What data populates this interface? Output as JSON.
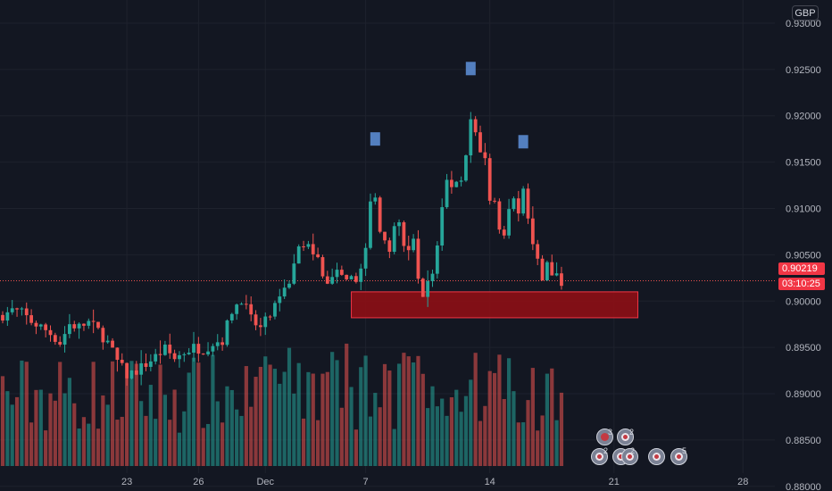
{
  "instrument": {
    "currency": "GBP",
    "current_price": "0.90219",
    "countdown": "03:10:25"
  },
  "colors": {
    "background": "#131722",
    "up": "#26a69a",
    "down": "#ef5350",
    "zone_fill": "#8b0f16",
    "zone_border": "#f23645",
    "marker": "#5b8bd0",
    "axis_text": "#b2b5be",
    "grid": "#1e222d"
  },
  "chart_data": {
    "type": "candlestick",
    "y_axis": {
      "range": [
        0.8795,
        0.9325
      ],
      "ticks": [
        "0.93000",
        "0.92500",
        "0.92000",
        "0.91500",
        "0.91000",
        "0.90500",
        "0.90000",
        "0.89500",
        "0.89000",
        "0.88500",
        "0.88000"
      ]
    },
    "x_axis": {
      "ticks": [
        {
          "label": "23",
          "bar": 26
        },
        {
          "label": "26",
          "bar": 41
        },
        {
          "label": "Dec",
          "bar": 55
        },
        {
          "label": "7",
          "bar": 76
        },
        {
          "label": "14",
          "bar": 102
        },
        {
          "label": "21",
          "bar": 128
        },
        {
          "label": "28",
          "bar": 155
        }
      ]
    },
    "support_zone": {
      "from_bar": 73,
      "to_bar": 133,
      "top": 0.901,
      "bottom": 0.8982
    },
    "peak_markers": [
      {
        "bar": 78,
        "price": 0.9175
      },
      {
        "bar": 98,
        "price": 0.9251
      },
      {
        "bar": 109,
        "price": 0.9172
      }
    ],
    "path_points": [
      [
        0,
        0.8985
      ],
      [
        2,
        0.899
      ],
      [
        4,
        0.8987
      ],
      [
        6,
        0.8978
      ],
      [
        8,
        0.8972
      ],
      [
        10,
        0.8965
      ],
      [
        12,
        0.8955
      ],
      [
        14,
        0.8975
      ],
      [
        16,
        0.8972
      ],
      [
        18,
        0.8977
      ],
      [
        20,
        0.8968
      ],
      [
        22,
        0.8955
      ],
      [
        24,
        0.8935
      ],
      [
        26,
        0.892
      ],
      [
        28,
        0.8925
      ],
      [
        30,
        0.8932
      ],
      [
        32,
        0.894
      ],
      [
        34,
        0.8948
      ],
      [
        36,
        0.8938
      ],
      [
        38,
        0.8945
      ],
      [
        40,
        0.895
      ],
      [
        42,
        0.8948
      ],
      [
        44,
        0.8955
      ],
      [
        46,
        0.8958
      ],
      [
        48,
        0.899
      ],
      [
        50,
        0.9003
      ],
      [
        52,
        0.898
      ],
      [
        54,
        0.897
      ],
      [
        56,
        0.8985
      ],
      [
        58,
        0.9
      ],
      [
        60,
        0.902
      ],
      [
        62,
        0.9065
      ],
      [
        64,
        0.906
      ],
      [
        66,
        0.9045
      ],
      [
        68,
        0.9015
      ],
      [
        70,
        0.903
      ],
      [
        72,
        0.9018
      ],
      [
        74,
        0.9025
      ],
      [
        76,
        0.9055
      ],
      [
        77,
        0.9105
      ],
      [
        78,
        0.911
      ],
      [
        79,
        0.908
      ],
      [
        80,
        0.907
      ],
      [
        81,
        0.905
      ],
      [
        82,
        0.9075
      ],
      [
        83,
        0.9082
      ],
      [
        84,
        0.906
      ],
      [
        85,
        0.9055
      ],
      [
        86,
        0.9065
      ],
      [
        87,
        0.902
      ],
      [
        88,
        0.901
      ],
      [
        89,
        0.902
      ],
      [
        90,
        0.903
      ],
      [
        91,
        0.906
      ],
      [
        92,
        0.91
      ],
      [
        93,
        0.913
      ],
      [
        94,
        0.9125
      ],
      [
        95,
        0.913
      ],
      [
        96,
        0.9135
      ],
      [
        97,
        0.916
      ],
      [
        98,
        0.9195
      ],
      [
        99,
        0.918
      ],
      [
        100,
        0.9155
      ],
      [
        101,
        0.915
      ],
      [
        102,
        0.9105
      ],
      [
        103,
        0.911
      ],
      [
        104,
        0.9075
      ],
      [
        105,
        0.907
      ],
      [
        106,
        0.9095
      ],
      [
        107,
        0.911
      ],
      [
        108,
        0.91
      ],
      [
        109,
        0.912
      ],
      [
        110,
        0.909
      ],
      [
        111,
        0.906
      ],
      [
        112,
        0.904
      ],
      [
        113,
        0.9025
      ],
      [
        114,
        0.904
      ],
      [
        115,
        0.903
      ],
      [
        116,
        0.9025
      ],
      [
        117,
        0.9022
      ]
    ],
    "volume_scale": [
      0,
      1
    ]
  },
  "events": [
    {
      "id": "row1a",
      "count": "3"
    },
    {
      "id": "row1b",
      "count": "2"
    },
    {
      "id": "row2a",
      "count": "2"
    },
    {
      "id": "row2b",
      "count": "2"
    },
    {
      "id": "row2c",
      "count": ""
    },
    {
      "id": "row2d",
      "count": "5"
    }
  ]
}
